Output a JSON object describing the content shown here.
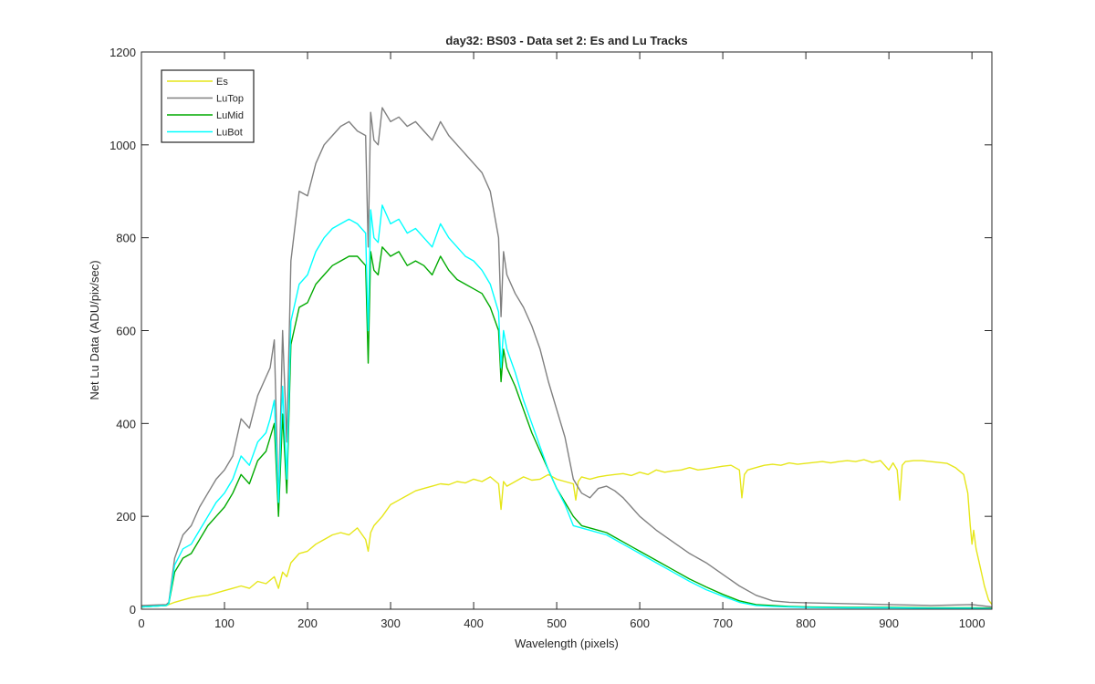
{
  "chart_data": {
    "type": "line",
    "title": "day32: BS03 - Data set 2: Es and Lu Tracks",
    "xlabel": "Wavelength (pixels)",
    "ylabel": "Net Lu Data (ADU/pix/sec)",
    "xlim": [
      0,
      1024
    ],
    "ylim": [
      0,
      1200
    ],
    "xticks": [
      0,
      100,
      200,
      300,
      400,
      500,
      600,
      700,
      800,
      900,
      1000
    ],
    "yticks": [
      0,
      200,
      400,
      600,
      800,
      1000,
      1200
    ],
    "grid": false,
    "box": true,
    "legend_position": "top-left",
    "series": [
      {
        "name": "Es",
        "color": "#e6e619",
        "x": [
          0,
          30,
          40,
          50,
          60,
          70,
          80,
          90,
          100,
          110,
          120,
          130,
          140,
          150,
          160,
          165,
          170,
          175,
          180,
          190,
          200,
          210,
          220,
          230,
          240,
          250,
          260,
          270,
          273,
          276,
          280,
          290,
          300,
          310,
          320,
          330,
          340,
          350,
          360,
          370,
          380,
          390,
          400,
          410,
          420,
          430,
          433,
          436,
          440,
          450,
          460,
          470,
          480,
          490,
          500,
          510,
          520,
          523,
          526,
          530,
          540,
          550,
          560,
          570,
          580,
          590,
          600,
          610,
          620,
          630,
          640,
          650,
          660,
          670,
          680,
          690,
          700,
          710,
          720,
          723,
          726,
          730,
          740,
          750,
          760,
          770,
          780,
          790,
          800,
          810,
          820,
          830,
          840,
          850,
          860,
          870,
          880,
          890,
          900,
          905,
          910,
          913,
          916,
          920,
          930,
          940,
          950,
          960,
          970,
          980,
          990,
          995,
          998,
          1000,
          1002,
          1005,
          1010,
          1015,
          1020,
          1024
        ],
        "y": [
          5,
          8,
          15,
          20,
          25,
          28,
          30,
          35,
          40,
          45,
          50,
          45,
          60,
          55,
          70,
          45,
          80,
          70,
          100,
          120,
          125,
          140,
          150,
          160,
          165,
          160,
          175,
          150,
          125,
          165,
          180,
          200,
          225,
          235,
          245,
          255,
          260,
          265,
          270,
          268,
          275,
          272,
          280,
          275,
          285,
          270,
          215,
          275,
          265,
          275,
          285,
          278,
          280,
          290,
          280,
          275,
          270,
          235,
          275,
          285,
          280,
          285,
          288,
          290,
          292,
          288,
          295,
          290,
          300,
          295,
          298,
          300,
          305,
          300,
          302,
          305,
          308,
          310,
          300,
          240,
          290,
          300,
          305,
          310,
          312,
          310,
          315,
          312,
          314,
          316,
          318,
          315,
          318,
          320,
          318,
          322,
          316,
          320,
          300,
          315,
          300,
          235,
          310,
          318,
          320,
          320,
          318,
          316,
          314,
          305,
          290,
          250,
          180,
          140,
          170,
          130,
          90,
          50,
          20,
          10
        ]
      },
      {
        "name": "LuTop",
        "color": "#808080",
        "x": [
          0,
          30,
          33,
          40,
          50,
          60,
          70,
          80,
          90,
          100,
          110,
          120,
          130,
          140,
          150,
          155,
          160,
          165,
          170,
          175,
          180,
          190,
          200,
          210,
          220,
          230,
          240,
          250,
          260,
          270,
          273,
          276,
          280,
          285,
          290,
          300,
          310,
          320,
          330,
          340,
          350,
          360,
          370,
          380,
          390,
          400,
          410,
          420,
          430,
          433,
          436,
          440,
          450,
          460,
          470,
          480,
          490,
          500,
          510,
          520,
          530,
          540,
          550,
          560,
          570,
          580,
          590,
          600,
          620,
          640,
          660,
          680,
          700,
          720,
          740,
          760,
          780,
          800,
          850,
          900,
          950,
          1000,
          1024
        ],
        "y": [
          8,
          10,
          15,
          110,
          160,
          180,
          220,
          250,
          280,
          300,
          330,
          410,
          390,
          460,
          500,
          520,
          580,
          220,
          600,
          360,
          750,
          900,
          890,
          960,
          1000,
          1020,
          1040,
          1050,
          1030,
          1020,
          780,
          1070,
          1010,
          1000,
          1080,
          1050,
          1060,
          1040,
          1050,
          1030,
          1010,
          1050,
          1020,
          1000,
          980,
          960,
          940,
          900,
          800,
          630,
          770,
          720,
          680,
          650,
          610,
          560,
          490,
          430,
          370,
          280,
          250,
          240,
          260,
          265,
          255,
          240,
          220,
          200,
          170,
          145,
          120,
          100,
          75,
          50,
          30,
          18,
          15,
          14,
          12,
          10,
          8,
          10,
          5
        ]
      },
      {
        "name": "LuMid",
        "color": "#00aa00",
        "x": [
          0,
          30,
          33,
          40,
          50,
          60,
          70,
          80,
          90,
          100,
          110,
          120,
          130,
          140,
          150,
          155,
          160,
          165,
          170,
          175,
          180,
          190,
          200,
          210,
          220,
          230,
          240,
          250,
          260,
          270,
          273,
          276,
          280,
          285,
          290,
          300,
          310,
          320,
          330,
          340,
          350,
          360,
          370,
          380,
          390,
          400,
          410,
          420,
          430,
          433,
          436,
          440,
          450,
          460,
          470,
          480,
          490,
          500,
          510,
          520,
          530,
          540,
          550,
          560,
          570,
          580,
          590,
          600,
          620,
          640,
          660,
          680,
          700,
          720,
          740,
          760,
          780,
          800,
          850,
          900,
          950,
          1000,
          1024
        ],
        "y": [
          5,
          8,
          12,
          80,
          110,
          120,
          150,
          180,
          200,
          220,
          250,
          290,
          270,
          320,
          340,
          370,
          400,
          200,
          420,
          250,
          570,
          650,
          660,
          700,
          720,
          740,
          750,
          760,
          760,
          740,
          530,
          770,
          730,
          720,
          780,
          760,
          770,
          740,
          750,
          740,
          720,
          760,
          730,
          710,
          700,
          690,
          680,
          650,
          600,
          490,
          560,
          520,
          480,
          430,
          380,
          340,
          300,
          260,
          230,
          200,
          180,
          175,
          170,
          165,
          155,
          145,
          135,
          125,
          105,
          85,
          65,
          48,
          32,
          18,
          10,
          8,
          6,
          5,
          4,
          4,
          3,
          3,
          2
        ]
      },
      {
        "name": "LuBot",
        "color": "#00ffff",
        "x": [
          0,
          30,
          33,
          40,
          50,
          60,
          70,
          80,
          90,
          100,
          110,
          120,
          130,
          140,
          150,
          155,
          160,
          165,
          170,
          175,
          180,
          190,
          200,
          210,
          220,
          230,
          240,
          250,
          260,
          270,
          273,
          276,
          280,
          285,
          290,
          300,
          310,
          320,
          330,
          340,
          350,
          360,
          370,
          380,
          390,
          400,
          410,
          420,
          430,
          433,
          436,
          440,
          450,
          460,
          470,
          480,
          490,
          500,
          510,
          520,
          530,
          540,
          550,
          560,
          570,
          580,
          590,
          600,
          620,
          640,
          660,
          680,
          700,
          720,
          740,
          760,
          780,
          800,
          850,
          900,
          950,
          1000,
          1024
        ],
        "y": [
          5,
          8,
          12,
          95,
          130,
          140,
          170,
          200,
          230,
          250,
          280,
          330,
          310,
          360,
          380,
          410,
          450,
          230,
          480,
          280,
          620,
          700,
          720,
          770,
          800,
          820,
          830,
          840,
          830,
          810,
          600,
          860,
          800,
          790,
          870,
          830,
          840,
          810,
          820,
          800,
          780,
          830,
          800,
          780,
          760,
          750,
          730,
          700,
          640,
          520,
          600,
          560,
          510,
          450,
          400,
          350,
          300,
          260,
          225,
          180,
          175,
          170,
          165,
          160,
          150,
          140,
          130,
          120,
          100,
          80,
          60,
          42,
          28,
          15,
          8,
          6,
          5,
          4,
          3,
          3,
          2,
          2,
          1
        ]
      }
    ]
  }
}
